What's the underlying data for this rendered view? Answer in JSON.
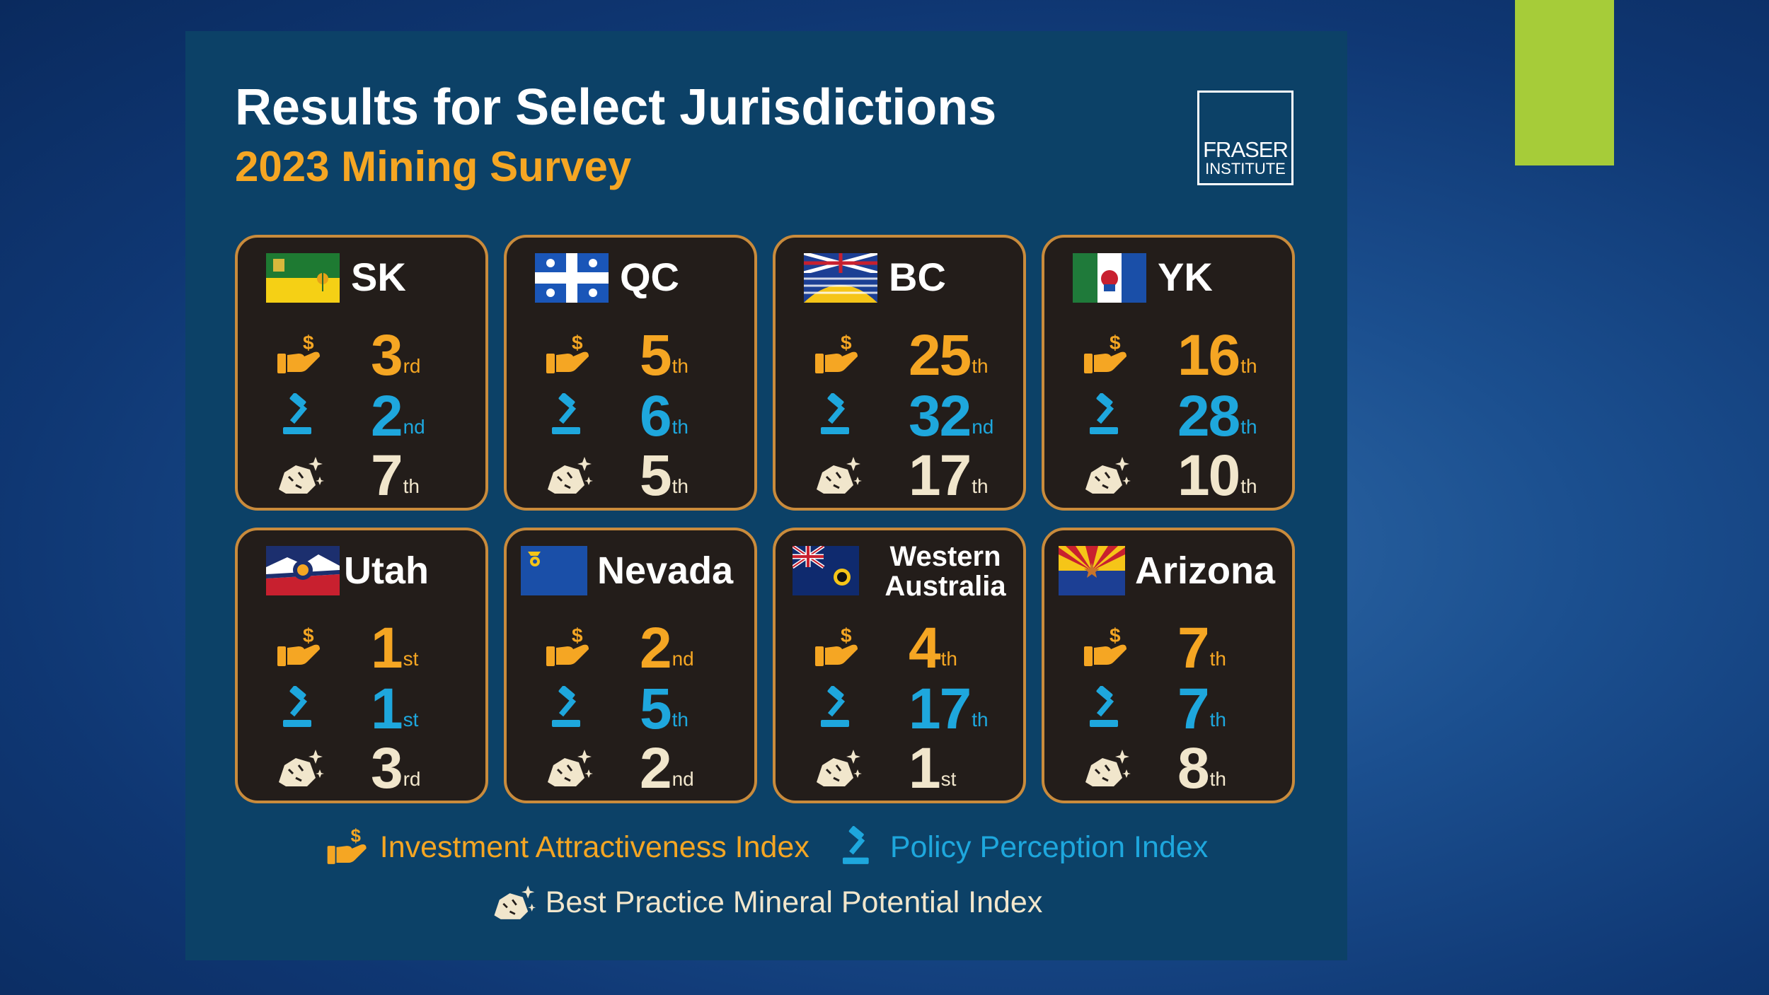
{
  "header": {
    "title": "Results for Select Jurisdictions",
    "subtitle": "2023 Mining Survey",
    "logo_line1": "FRASER",
    "logo_line2": "INSTITUTE"
  },
  "colors": {
    "investment": "#f5a623",
    "policy": "#1ea7dd",
    "mineral": "#f1e6cc",
    "card_border": "#c98b3c",
    "card_bg": "#231d1a",
    "panel_bg": "#0c4167",
    "accent_bar": "#a6cc39"
  },
  "jurisdictions": [
    {
      "name": "SK",
      "flag": "saskatchewan-flag",
      "investment": {
        "rank": "3",
        "suffix": "rd"
      },
      "policy": {
        "rank": "2",
        "suffix": "nd"
      },
      "mineral": {
        "rank": "7",
        "suffix": "th"
      }
    },
    {
      "name": "QC",
      "flag": "quebec-flag",
      "investment": {
        "rank": "5",
        "suffix": "th"
      },
      "policy": {
        "rank": "6",
        "suffix": "th"
      },
      "mineral": {
        "rank": "5",
        "suffix": "th"
      }
    },
    {
      "name": "BC",
      "flag": "british-columbia-flag",
      "investment": {
        "rank": "25",
        "suffix": "th"
      },
      "policy": {
        "rank": "32",
        "suffix": "nd"
      },
      "mineral": {
        "rank": "17",
        "suffix": "th"
      }
    },
    {
      "name": "YK",
      "flag": "yukon-flag",
      "investment": {
        "rank": "16",
        "suffix": "th"
      },
      "policy": {
        "rank": "28",
        "suffix": "th"
      },
      "mineral": {
        "rank": "10",
        "suffix": "th"
      }
    },
    {
      "name": "Utah",
      "flag": "utah-flag",
      "investment": {
        "rank": "1",
        "suffix": "st"
      },
      "policy": {
        "rank": "1",
        "suffix": "st"
      },
      "mineral": {
        "rank": "3",
        "suffix": "rd"
      }
    },
    {
      "name": "Nevada",
      "flag": "nevada-flag",
      "investment": {
        "rank": "2",
        "suffix": "nd"
      },
      "policy": {
        "rank": "5",
        "suffix": "th"
      },
      "mineral": {
        "rank": "2",
        "suffix": "nd"
      }
    },
    {
      "name_line1": "Western",
      "name_line2": "Australia",
      "flag": "western-australia-flag",
      "investment": {
        "rank": "4",
        "suffix": "th"
      },
      "policy": {
        "rank": "17",
        "suffix": "th"
      },
      "mineral": {
        "rank": "1",
        "suffix": "st"
      }
    },
    {
      "name": "Arizona",
      "flag": "arizona-flag",
      "investment": {
        "rank": "7",
        "suffix": "th"
      },
      "policy": {
        "rank": "7",
        "suffix": "th"
      },
      "mineral": {
        "rank": "8",
        "suffix": "th"
      }
    }
  ],
  "legend": {
    "investment": {
      "label": "Investment Attractiveness Index",
      "icon": "hand-dollar-icon"
    },
    "policy": {
      "label": "Policy Perception Index",
      "icon": "gavel-icon"
    },
    "mineral": {
      "label": "Best Practice Mineral Potential Index",
      "icon": "rock-sparkle-icon"
    }
  }
}
